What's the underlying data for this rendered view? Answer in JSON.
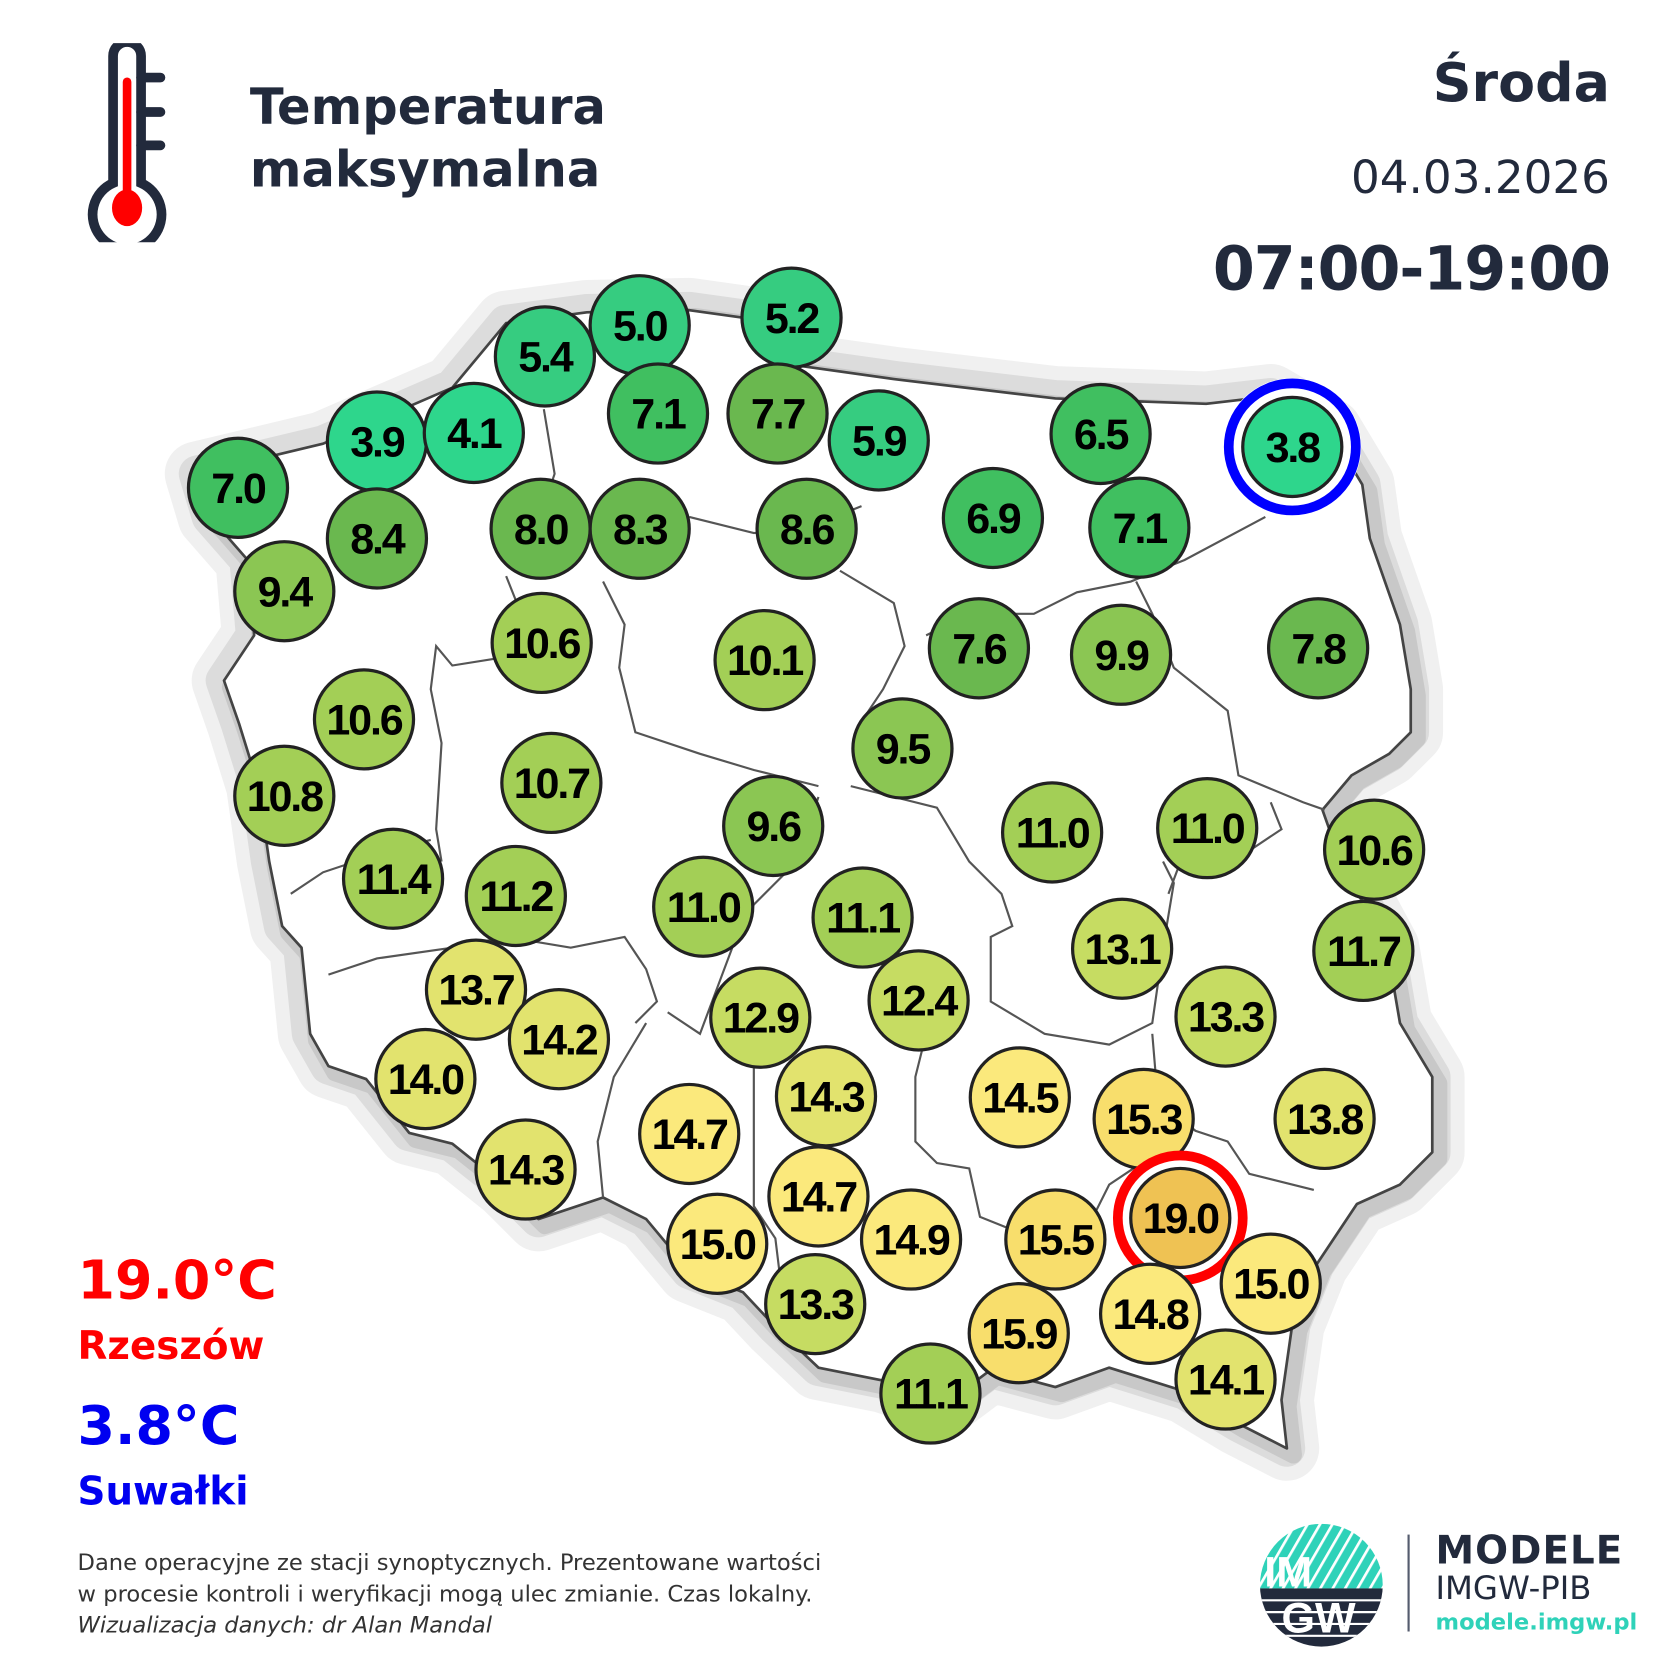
{
  "header": {
    "title_line1": "Temperatura",
    "title_line2": "maksymalna",
    "day": "Środa",
    "date": "04.03.2026",
    "hours": "07:00-19:00"
  },
  "extremes": {
    "max": {
      "value": "19.0°C",
      "city": "Rzeszów",
      "color": "#ff0000"
    },
    "min": {
      "value": "3.8°C",
      "city": "Suwałki",
      "color": "#0000ff"
    }
  },
  "footer": {
    "note_line1": "Dane operacyjne ze stacji synoptycznych. Prezentowane wartości",
    "note_line2": "w procesie kontroli i weryfikacji mogą ulec zmianie. Czas lokalny.",
    "credit": "Wizualizacja danych: dr Alan Mandal"
  },
  "brand": {
    "logo_text_top": "IM",
    "logo_text_bottom": "GW",
    "name": "MODELE",
    "org": "IMGW-PIB",
    "url": "modele.imgw.pl",
    "accent": "#2fd2b9",
    "dark": "#222a3c"
  },
  "map": {
    "unit": "°C",
    "stations": [
      "7.0",
      "3.9",
      "4.1",
      "5.4",
      "5.0",
      "5.2",
      "7.1",
      "7.7",
      "5.9",
      "6.5",
      "3.8",
      "8.4",
      "8.0",
      "8.3",
      "8.6",
      "6.9",
      "7.1",
      "9.4",
      "10.6",
      "10.1",
      "7.6",
      "9.9",
      "7.8",
      "10.6",
      "10.8",
      "10.7",
      "9.5",
      "9.6",
      "11.0",
      "11.0",
      "10.6",
      "11.4",
      "11.2",
      "11.0",
      "11.1",
      "13.1",
      "11.7",
      "13.7",
      "14.2",
      "12.9",
      "12.4",
      "13.3",
      "14.0",
      "14.3",
      "14.5",
      "15.3",
      "13.8",
      "14.7",
      "14.3",
      "14.7",
      "19.0",
      "15.0",
      "14.9",
      "15.5",
      "15.0",
      "13.3",
      "15.9",
      "14.8",
      "14.1",
      "11.1"
    ],
    "max_station_value": "19.0",
    "min_station_value": "3.8"
  }
}
